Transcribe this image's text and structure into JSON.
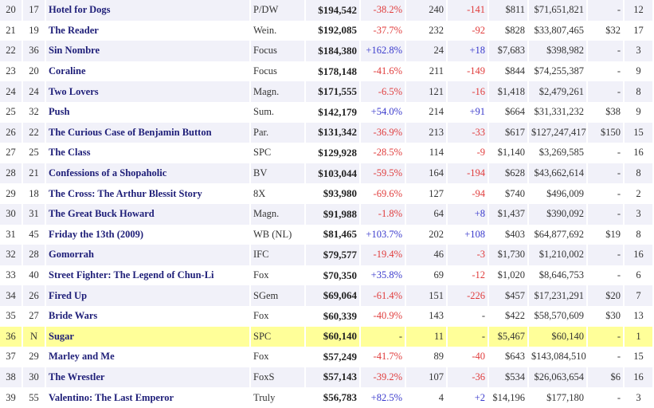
{
  "colors": {
    "negative": "#e03c3c",
    "positive": "#3a3acc",
    "highlight": "#ffff99",
    "alt_row": "#f1f1f9",
    "title": "#1e1e78"
  },
  "rows": [
    {
      "rank": "20",
      "last": "17",
      "title": "Hotel for Dogs",
      "dist": "P/DW",
      "gross": "$194,542",
      "pct": "-38.2%",
      "theaters": "240",
      "change": "-141",
      "avg": "$811",
      "total": "$71,651,821",
      "budget": "-",
      "week": "12"
    },
    {
      "rank": "21",
      "last": "19",
      "title": "The Reader",
      "dist": "Wein.",
      "gross": "$192,085",
      "pct": "-37.7%",
      "theaters": "232",
      "change": "-92",
      "avg": "$828",
      "total": "$33,807,465",
      "budget": "$32",
      "week": "17"
    },
    {
      "rank": "22",
      "last": "36",
      "title": "Sin Nombre",
      "dist": "Focus",
      "gross": "$184,380",
      "pct": "+162.8%",
      "theaters": "24",
      "change": "+18",
      "avg": "$7,683",
      "total": "$398,982",
      "budget": "-",
      "week": "3"
    },
    {
      "rank": "23",
      "last": "20",
      "title": "Coraline",
      "dist": "Focus",
      "gross": "$178,148",
      "pct": "-41.6%",
      "theaters": "211",
      "change": "-149",
      "avg": "$844",
      "total": "$74,255,387",
      "budget": "-",
      "week": "9"
    },
    {
      "rank": "24",
      "last": "24",
      "title": "Two Lovers",
      "dist": "Magn.",
      "gross": "$171,555",
      "pct": "-6.5%",
      "theaters": "121",
      "change": "-16",
      "avg": "$1,418",
      "total": "$2,479,261",
      "budget": "-",
      "week": "8"
    },
    {
      "rank": "25",
      "last": "32",
      "title": "Push",
      "dist": "Sum.",
      "gross": "$142,179",
      "pct": "+54.0%",
      "theaters": "214",
      "change": "+91",
      "avg": "$664",
      "total": "$31,331,232",
      "budget": "$38",
      "week": "9"
    },
    {
      "rank": "26",
      "last": "22",
      "title": "The Curious Case of Benjamin Button",
      "dist": "Par.",
      "gross": "$131,342",
      "pct": "-36.9%",
      "theaters": "213",
      "change": "-33",
      "avg": "$617",
      "total": "$127,247,417",
      "budget": "$150",
      "week": "15"
    },
    {
      "rank": "27",
      "last": "25",
      "title": "The Class",
      "dist": "SPC",
      "gross": "$129,928",
      "pct": "-28.5%",
      "theaters": "114",
      "change": "-9",
      "avg": "$1,140",
      "total": "$3,269,585",
      "budget": "-",
      "week": "16"
    },
    {
      "rank": "28",
      "last": "21",
      "title": "Confessions of a Shopaholic",
      "dist": "BV",
      "gross": "$103,044",
      "pct": "-59.5%",
      "theaters": "164",
      "change": "-194",
      "avg": "$628",
      "total": "$43,662,614",
      "budget": "-",
      "week": "8"
    },
    {
      "rank": "29",
      "last": "18",
      "title": "The Cross: The Arthur Blessit Story",
      "dist": "8X",
      "gross": "$93,980",
      "pct": "-69.6%",
      "theaters": "127",
      "change": "-94",
      "avg": "$740",
      "total": "$496,009",
      "budget": "-",
      "week": "2"
    },
    {
      "rank": "30",
      "last": "31",
      "title": "The Great Buck Howard",
      "dist": "Magn.",
      "gross": "$91,988",
      "pct": "-1.8%",
      "theaters": "64",
      "change": "+8",
      "avg": "$1,437",
      "total": "$390,092",
      "budget": "-",
      "week": "3"
    },
    {
      "rank": "31",
      "last": "45",
      "title": "Friday the 13th (2009)",
      "dist": "WB (NL)",
      "gross": "$81,465",
      "pct": "+103.7%",
      "theaters": "202",
      "change": "+108",
      "avg": "$403",
      "total": "$64,877,692",
      "budget": "$19",
      "week": "8"
    },
    {
      "rank": "32",
      "last": "28",
      "title": "Gomorrah",
      "dist": "IFC",
      "gross": "$79,577",
      "pct": "-19.4%",
      "theaters": "46",
      "change": "-3",
      "avg": "$1,730",
      "total": "$1,210,002",
      "budget": "-",
      "week": "16"
    },
    {
      "rank": "33",
      "last": "40",
      "title": "Street Fighter: The Legend of Chun-Li",
      "dist": "Fox",
      "gross": "$70,350",
      "pct": "+35.8%",
      "theaters": "69",
      "change": "-12",
      "avg": "$1,020",
      "total": "$8,646,753",
      "budget": "-",
      "week": "6"
    },
    {
      "rank": "34",
      "last": "26",
      "title": "Fired Up",
      "dist": "SGem",
      "gross": "$69,064",
      "pct": "-61.4%",
      "theaters": "151",
      "change": "-226",
      "avg": "$457",
      "total": "$17,231,291",
      "budget": "$20",
      "week": "7"
    },
    {
      "rank": "35",
      "last": "27",
      "title": "Bride Wars",
      "dist": "Fox",
      "gross": "$60,339",
      "pct": "-40.9%",
      "theaters": "143",
      "change": "-",
      "avg": "$422",
      "total": "$58,570,609",
      "budget": "$30",
      "week": "13"
    },
    {
      "rank": "36",
      "last": "N",
      "title": "Sugar",
      "dist": "SPC",
      "gross": "$60,140",
      "pct": "-",
      "theaters": "11",
      "change": "-",
      "avg": "$5,467",
      "total": "$60,140",
      "budget": "-",
      "week": "1",
      "highlight": true
    },
    {
      "rank": "37",
      "last": "29",
      "title": "Marley and Me",
      "dist": "Fox",
      "gross": "$57,249",
      "pct": "-41.7%",
      "theaters": "89",
      "change": "-40",
      "avg": "$643",
      "total": "$143,084,510",
      "budget": "-",
      "week": "15"
    },
    {
      "rank": "38",
      "last": "30",
      "title": "The Wrestler",
      "dist": "FoxS",
      "gross": "$57,143",
      "pct": "-39.2%",
      "theaters": "107",
      "change": "-36",
      "avg": "$534",
      "total": "$26,063,654",
      "budget": "$6",
      "week": "16"
    },
    {
      "rank": "39",
      "last": "55",
      "title": "Valentino: The Last Emperor",
      "dist": "Truly",
      "gross": "$56,783",
      "pct": "+82.5%",
      "theaters": "4",
      "change": "+2",
      "avg": "$14,196",
      "total": "$177,180",
      "budget": "-",
      "week": "3"
    }
  ]
}
